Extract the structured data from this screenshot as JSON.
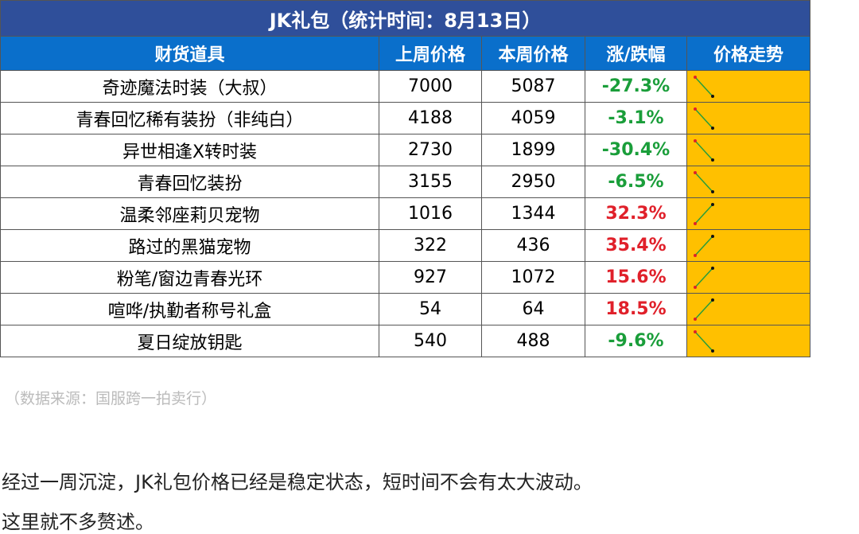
{
  "table": {
    "title": "JK礼包（统计时间：8月13日）",
    "columns": [
      "财货道具",
      "上周价格",
      "本周价格",
      "涨/跌幅",
      "价格走势"
    ],
    "rows": [
      [
        "奇迹魔法时装（大叔）",
        7000,
        5087,
        "-27.3%"
      ],
      [
        "青春回忆稀有装扮（非纯白）",
        4188,
        4059,
        "-3.1%"
      ],
      [
        "异世相逢X转时装",
        2730,
        1899,
        "-30.4%"
      ],
      [
        "青春回忆装扮",
        3155,
        2950,
        "-6.5%"
      ],
      [
        "温柔邻座莉贝宠物",
        1016,
        1344,
        "32.3%"
      ],
      [
        "路过的黑猫宠物",
        322,
        436,
        "35.4%"
      ],
      [
        "粉笔/窗边青春光环",
        927,
        1072,
        "15.6%"
      ],
      [
        "喧哗/执勤者称号礼盒",
        54,
        64,
        "18.5%"
      ],
      [
        "夏日绽放钥匙",
        540,
        488,
        "-9.6%"
      ]
    ]
  },
  "source": "（数据来源：国服跨一拍卖行）",
  "paragraphs": [
    "经过一周沉淀，JK礼包价格已经是稳定状态，短时间不会有太大波动。",
    "这里就不多赘述。"
  ]
}
